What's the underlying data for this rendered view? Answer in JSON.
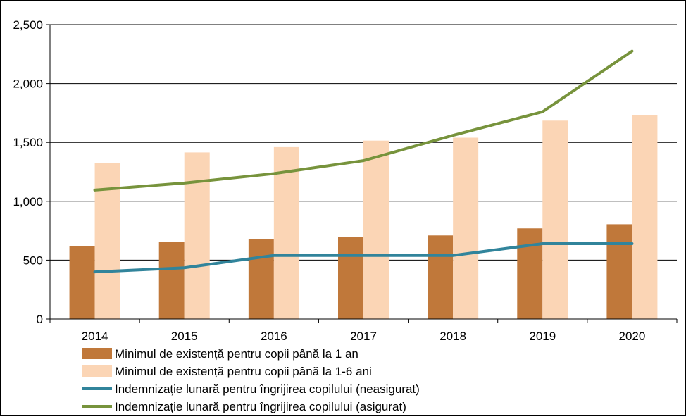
{
  "chart_data": {
    "type": "bar",
    "title": "",
    "xlabel": "",
    "ylabel": "",
    "ylim": [
      0,
      2500
    ],
    "yticks": [
      0,
      500,
      1000,
      1500,
      2000,
      2500
    ],
    "ytick_labels": [
      "0",
      "500",
      "1,000",
      "1,500",
      "2,000",
      "2,500"
    ],
    "grid": true,
    "categories": [
      "2014",
      "2015",
      "2016",
      "2017",
      "2018",
      "2019",
      "2020"
    ],
    "series": [
      {
        "name": "Minimul de existență pentru copii până la 1 an",
        "kind": "bar",
        "color": "#C0783A",
        "values": [
          620,
          655,
          680,
          695,
          710,
          770,
          805
        ]
      },
      {
        "name": "Minimul de existență pentru copii până la 1-6 ani",
        "kind": "bar",
        "color": "#FBD5B5",
        "values": [
          1325,
          1415,
          1460,
          1515,
          1540,
          1685,
          1730
        ]
      },
      {
        "name": "Indemnizație lunară pentru îngrijirea copilului (neasigurat)",
        "kind": "line",
        "color": "#31849B",
        "values": [
          400,
          435,
          540,
          540,
          540,
          640,
          640
        ]
      },
      {
        "name": "Indemnizație lunară pentru îngrijirea copilului (asigurat)",
        "kind": "line",
        "color": "#77933C",
        "values": [
          1095,
          1155,
          1235,
          1345,
          1560,
          1760,
          2275
        ]
      }
    ],
    "legend_position": "bottom"
  }
}
